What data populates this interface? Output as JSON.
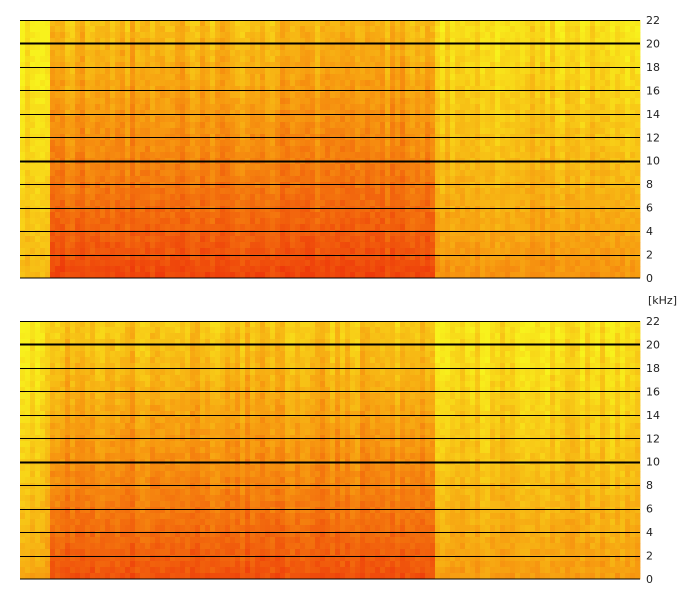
{
  "chart_data": [
    {
      "type": "heatmap",
      "title": "",
      "xlabel": "",
      "ylabel": "kHz",
      "ylim": [
        0,
        22
      ],
      "yticks": [
        "0",
        "2",
        "4",
        "6",
        "8",
        "10",
        "12",
        "14",
        "16",
        "18",
        "20",
        "22"
      ],
      "gridlines": [
        2,
        4,
        6,
        8,
        10,
        12,
        14,
        16,
        18,
        20,
        22
      ],
      "bold_gridlines": [
        10,
        20
      ],
      "colormap": {
        "low": "#ee3a0a",
        "mid": "#f79a10",
        "high": "#f8f21c"
      },
      "segments": [
        {
          "x_start": 0.0,
          "x_end": 0.05,
          "intensity_low": 0.35,
          "intensity_high": 0.05
        },
        {
          "x_start": 0.05,
          "x_end": 0.67,
          "intensity_low": 0.95,
          "intensity_high": 0.3
        },
        {
          "x_start": 0.67,
          "x_end": 1.0,
          "intensity_low": 0.55,
          "intensity_high": 0.1
        }
      ]
    },
    {
      "type": "heatmap",
      "title": "",
      "xlabel": "",
      "ylabel": "kHz",
      "ylim": [
        0,
        22
      ],
      "yticks": [
        "0",
        "2",
        "4",
        "6",
        "8",
        "10",
        "12",
        "14",
        "16",
        "18",
        "20",
        "22"
      ],
      "gridlines": [
        2,
        4,
        6,
        8,
        10,
        12,
        14,
        16,
        18,
        20,
        22
      ],
      "bold_gridlines": [
        10,
        20
      ],
      "colormap": {
        "low": "#ee3a0a",
        "mid": "#f79a10",
        "high": "#f8f21c"
      },
      "segments": [
        {
          "x_start": 0.0,
          "x_end": 0.05,
          "intensity_low": 0.45,
          "intensity_high": 0.05
        },
        {
          "x_start": 0.05,
          "x_end": 0.67,
          "intensity_low": 0.9,
          "intensity_high": 0.25
        },
        {
          "x_start": 0.67,
          "x_end": 1.0,
          "intensity_low": 0.5,
          "intensity_high": 0.08
        }
      ]
    }
  ],
  "unit_label": "[kHz]"
}
